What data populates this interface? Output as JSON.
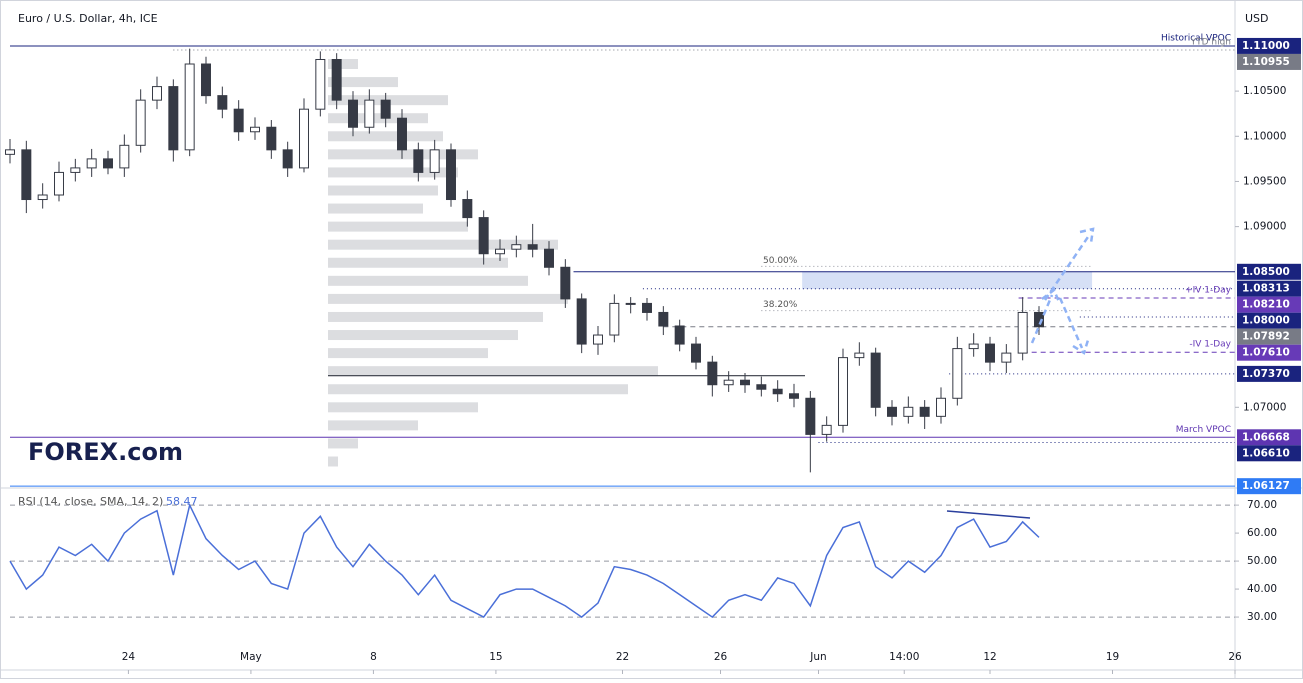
{
  "chart_data": [
    {
      "type": "candlestick",
      "title": "Euro / U.S. Dollar, 4h, ICE",
      "currency": "USD",
      "logo": "FOREX.com",
      "xlim": [
        0,
        300
      ],
      "ylim": [
        1.0614,
        1.1142
      ],
      "x": [
        0,
        4,
        8,
        12,
        16,
        20,
        24,
        28,
        32,
        36,
        40,
        44,
        48,
        52,
        56,
        60,
        64,
        68,
        72,
        76,
        80,
        84,
        88,
        92,
        96,
        100,
        104,
        108,
        112,
        116,
        120,
        124,
        128,
        132,
        136,
        140,
        144,
        148,
        152,
        156,
        160,
        164,
        168,
        172,
        176,
        180,
        184,
        188,
        192,
        196,
        200,
        204,
        208,
        212,
        216,
        220,
        224,
        228,
        232,
        236,
        240,
        244,
        248,
        252
      ],
      "open": [
        1.098,
        1.0985,
        1.093,
        1.0935,
        1.096,
        1.0965,
        1.0975,
        1.0965,
        1.099,
        1.104,
        1.1055,
        1.0985,
        1.108,
        1.1045,
        1.103,
        1.1005,
        1.101,
        1.0985,
        1.0965,
        1.103,
        1.1085,
        1.104,
        1.101,
        1.104,
        1.102,
        1.0985,
        1.096,
        1.0985,
        1.093,
        1.091,
        1.087,
        1.0875,
        1.088,
        1.0875,
        1.0855,
        1.082,
        1.077,
        1.078,
        1.0815,
        1.0815,
        1.0805,
        1.079,
        1.077,
        1.075,
        1.0725,
        1.073,
        1.0725,
        1.072,
        1.0715,
        1.071,
        1.067,
        1.068,
        1.0755,
        1.076,
        1.07,
        1.069,
        1.07,
        1.069,
        1.071,
        1.0765,
        1.077,
        1.075,
        1.076,
        1.0805
      ],
      "high": [
        1.0997,
        1.0995,
        1.0948,
        1.0972,
        1.0975,
        1.0986,
        1.0984,
        1.1002,
        1.1052,
        1.1066,
        1.1063,
        1.1097,
        1.1088,
        1.1055,
        1.104,
        1.1021,
        1.1018,
        1.0994,
        1.1042,
        1.1094,
        1.1092,
        1.105,
        1.1052,
        1.1048,
        1.103,
        1.0993,
        1.0996,
        1.0992,
        1.094,
        1.0918,
        1.0886,
        1.089,
        1.0903,
        1.0884,
        1.0864,
        1.0826,
        1.079,
        1.0825,
        1.0822,
        1.0821,
        1.0812,
        1.0797,
        1.0778,
        1.0757,
        1.074,
        1.0738,
        1.0734,
        1.073,
        1.0726,
        1.0718,
        1.069,
        1.0765,
        1.0772,
        1.0766,
        1.0708,
        1.0712,
        1.0708,
        1.0722,
        1.0778,
        1.0782,
        1.0778,
        1.077,
        1.0822,
        1.0812
      ],
      "low": [
        1.097,
        1.0915,
        1.092,
        1.0928,
        1.095,
        1.0955,
        1.0958,
        1.0955,
        1.0982,
        1.103,
        1.0972,
        1.0978,
        1.1036,
        1.102,
        1.0995,
        1.0996,
        1.0975,
        1.0955,
        1.096,
        1.1022,
        1.103,
        1.1,
        1.1003,
        1.101,
        1.0975,
        1.095,
        1.0952,
        1.0922,
        1.09,
        1.0858,
        1.0862,
        1.0866,
        1.0866,
        1.0846,
        1.081,
        1.076,
        1.0758,
        1.0772,
        1.0804,
        1.0796,
        1.078,
        1.0762,
        1.0742,
        1.0712,
        1.0717,
        1.0716,
        1.0712,
        1.0706,
        1.07,
        1.0628,
        1.0662,
        1.0672,
        1.0746,
        1.069,
        1.068,
        1.0682,
        1.0676,
        1.0682,
        1.0702,
        1.0756,
        1.074,
        1.0738,
        1.0752,
        1.078
      ],
      "close": [
        1.0985,
        1.093,
        1.0935,
        1.096,
        1.0965,
        1.0975,
        1.0965,
        1.099,
        1.104,
        1.1055,
        1.0985,
        1.108,
        1.1045,
        1.103,
        1.1005,
        1.101,
        1.0985,
        1.0965,
        1.103,
        1.1085,
        1.104,
        1.101,
        1.104,
        1.102,
        1.0985,
        1.096,
        1.0985,
        1.093,
        1.091,
        1.087,
        1.0875,
        1.088,
        1.0875,
        1.0855,
        1.082,
        1.077,
        1.078,
        1.0815,
        1.0815,
        1.0805,
        1.079,
        1.077,
        1.075,
        1.0725,
        1.073,
        1.0725,
        1.072,
        1.0715,
        1.071,
        1.067,
        1.068,
        1.0755,
        1.076,
        1.07,
        1.069,
        1.07,
        1.069,
        1.071,
        1.0765,
        1.077,
        1.075,
        1.076,
        1.0805,
        1.07892
      ],
      "up_color": "#ffffff",
      "down_color": "#363a45",
      "wick_color": "#363a45",
      "yticks": [
        {
          "value": 1.105,
          "label": "1.10500"
        },
        {
          "value": 1.1,
          "label": "1.10000"
        },
        {
          "value": 1.095,
          "label": "1.09500"
        },
        {
          "value": 1.09,
          "label": "1.09000"
        },
        {
          "value": 1.07,
          "label": "1.07000"
        }
      ],
      "levels": [
        {
          "value": 1.11,
          "label": "1.11000",
          "color": "#1a237e",
          "style": "solid",
          "from": 0,
          "text": "Historical VPOC"
        },
        {
          "value": 1.10955,
          "label": "1.10955",
          "color": "#787b86",
          "style": "dotted",
          "from": 40,
          "text": "YTD high"
        },
        {
          "value": 1.085,
          "label": "1.08500",
          "color": "#1a237e",
          "style": "solid",
          "from": 138
        },
        {
          "value": 1.08313,
          "label": "1.08313",
          "color": "#1a237e",
          "style": "dotted",
          "from": 155
        },
        {
          "value": 1.0821,
          "label": "1.08210",
          "color": "#673ab7",
          "style": "dashed",
          "from": 247,
          "text": "+IV 1-Day"
        },
        {
          "value": 1.08,
          "label": "1.08000",
          "color": "#1a237e",
          "style": "dotted",
          "from": 262
        },
        {
          "value": 1.07892,
          "label": "1.07892",
          "color": "#787b86",
          "style": "dashed",
          "from": 160
        },
        {
          "value": 1.0761,
          "label": "1.07610",
          "color": "#673ab7",
          "style": "dashed",
          "from": 248,
          "text": "-IV 1-Day"
        },
        {
          "value": 1.0737,
          "label": "1.07370",
          "color": "#1a237e",
          "style": "dotted",
          "from": 230
        },
        {
          "value": 1.06668,
          "label": "1.06668",
          "color": "#5e35b1",
          "style": "solid",
          "from": 0,
          "text": "March VPOC"
        },
        {
          "value": 1.0661,
          "label": "1.06610",
          "color": "#1a237e",
          "style": "dotted",
          "from": 198
        },
        {
          "value": 1.06127,
          "label": "1.06127",
          "color": "#2f7bf5",
          "style": "solid",
          "from": 0
        }
      ],
      "fib": [
        {
          "value": 1.0856,
          "label": "50.00%"
        },
        {
          "value": 1.0807,
          "label": "38.20%"
        }
      ],
      "fib_range": [
        184,
        265
      ],
      "zone": {
        "low": 1.0831,
        "high": 1.085,
        "from": 194,
        "to": 265,
        "color": "#c5d3f2"
      },
      "volume_profile": {
        "prices": [
          1.108,
          1.106,
          1.104,
          1.102,
          1.1,
          1.098,
          1.096,
          1.094,
          1.092,
          1.09,
          1.088,
          1.086,
          1.084,
          1.082,
          1.08,
          1.078,
          1.076,
          1.074,
          1.072,
          1.07,
          1.068,
          1.066,
          1.064
        ],
        "values": [
          30,
          70,
          120,
          100,
          115,
          150,
          130,
          110,
          95,
          140,
          230,
          180,
          200,
          240,
          215,
          190,
          160,
          330,
          300,
          150,
          90,
          30,
          10
        ],
        "color": "#dcdde0"
      },
      "poc": 1.0735
    },
    {
      "type": "line",
      "title": "RSI (14, close, SMA, 14, 2)",
      "color": "#4a6fd8",
      "ylim": [
        11.8,
        75.4
      ],
      "values": [
        50,
        40,
        45,
        55,
        52,
        56,
        50,
        60,
        65,
        68,
        45,
        70,
        58,
        52,
        47,
        50,
        42,
        40,
        60,
        66,
        55,
        48,
        56,
        50,
        45,
        38,
        45,
        36,
        33,
        30,
        38,
        40,
        40,
        37,
        34,
        30,
        35,
        48,
        47,
        45,
        42,
        38,
        34,
        30,
        36,
        38,
        36,
        44,
        42,
        34,
        52,
        62,
        64,
        48,
        44,
        50,
        46,
        52,
        62,
        65,
        55,
        57,
        64,
        58.47
      ],
      "yticks": [
        {
          "value": 70,
          "label": "70.00"
        },
        {
          "value": 60,
          "label": "60.00"
        },
        {
          "value": 50,
          "label": "50.00"
        },
        {
          "value": 40,
          "label": "40.00"
        },
        {
          "value": 30,
          "label": "30.00"
        }
      ],
      "guides": [
        70,
        50,
        30
      ],
      "xticks": [
        {
          "value": 29,
          "label": "24"
        },
        {
          "value": 59,
          "label": "May"
        },
        {
          "value": 89,
          "label": "8"
        },
        {
          "value": 119,
          "label": "15"
        },
        {
          "value": 150,
          "label": "22"
        },
        {
          "value": 174,
          "label": "26"
        },
        {
          "value": 198,
          "label": "Jun"
        },
        {
          "value": 219,
          "label": "14:00"
        },
        {
          "value": 240,
          "label": "12"
        },
        {
          "value": 270,
          "label": "19"
        },
        {
          "value": 300,
          "label": "26"
        }
      ]
    }
  ]
}
